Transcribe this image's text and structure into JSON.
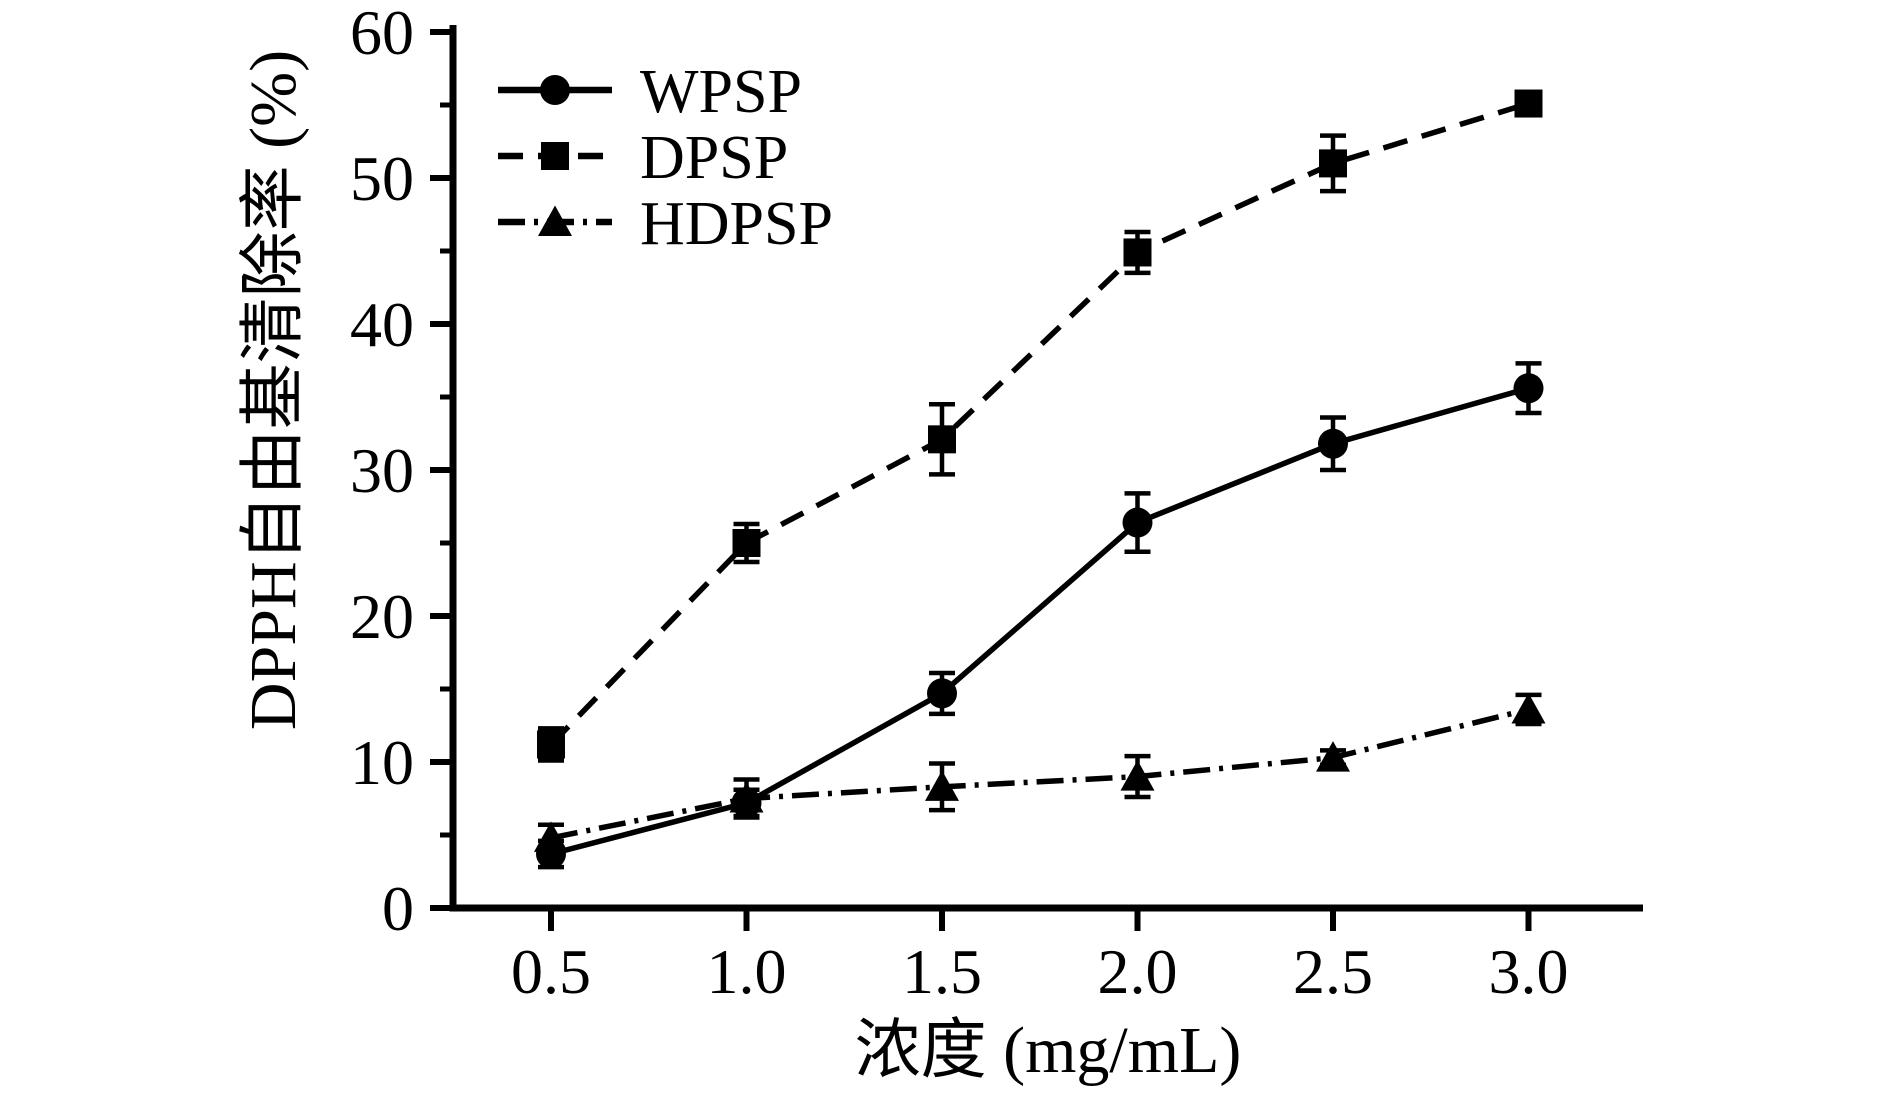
{
  "chart_data": {
    "type": "line",
    "title": "",
    "xlabel": "浓度 (mg/mL)",
    "ylabel": "DPPH自由基清除率 (%)",
    "x": [
      0.5,
      1.0,
      1.5,
      2.0,
      2.5,
      3.0
    ],
    "x_tick_labels": [
      "0.5",
      "1.0",
      "1.5",
      "2.0",
      "2.5",
      "3.0"
    ],
    "y_ticks": [
      0,
      10,
      20,
      30,
      40,
      50,
      60
    ],
    "y_minor_ticks": [
      5,
      15,
      25,
      35,
      45,
      55
    ],
    "ylim": [
      0,
      60
    ],
    "xlim": [
      0.25,
      3.29
    ],
    "grid": false,
    "legend_position": "upper-left-inside",
    "legend_entries": [
      "WPSP",
      "DPSP",
      "HDPSP"
    ],
    "series": [
      {
        "name": "WPSP",
        "marker": "circle",
        "linestyle": "solid",
        "values": [
          3.7,
          7.2,
          14.7,
          26.4,
          31.8,
          35.6
        ],
        "errors": [
          0.9,
          0.9,
          1.4,
          2.0,
          1.8,
          1.7
        ]
      },
      {
        "name": "DPSP",
        "marker": "square",
        "linestyle": "dashed",
        "values": [
          11.2,
          25.0,
          32.1,
          44.9,
          51.0,
          55.1
        ],
        "errors": [
          1.1,
          1.3,
          2.4,
          1.4,
          1.9,
          0.7
        ]
      },
      {
        "name": "HDPSP",
        "marker": "triangle",
        "linestyle": "dashdot",
        "values": [
          4.8,
          7.5,
          8.3,
          9.0,
          10.3,
          13.6
        ],
        "errors": [
          0.9,
          1.3,
          1.6,
          1.4,
          0.5,
          1.0
        ]
      }
    ],
    "colors": {
      "foreground": "#000000",
      "background": "#ffffff"
    }
  }
}
